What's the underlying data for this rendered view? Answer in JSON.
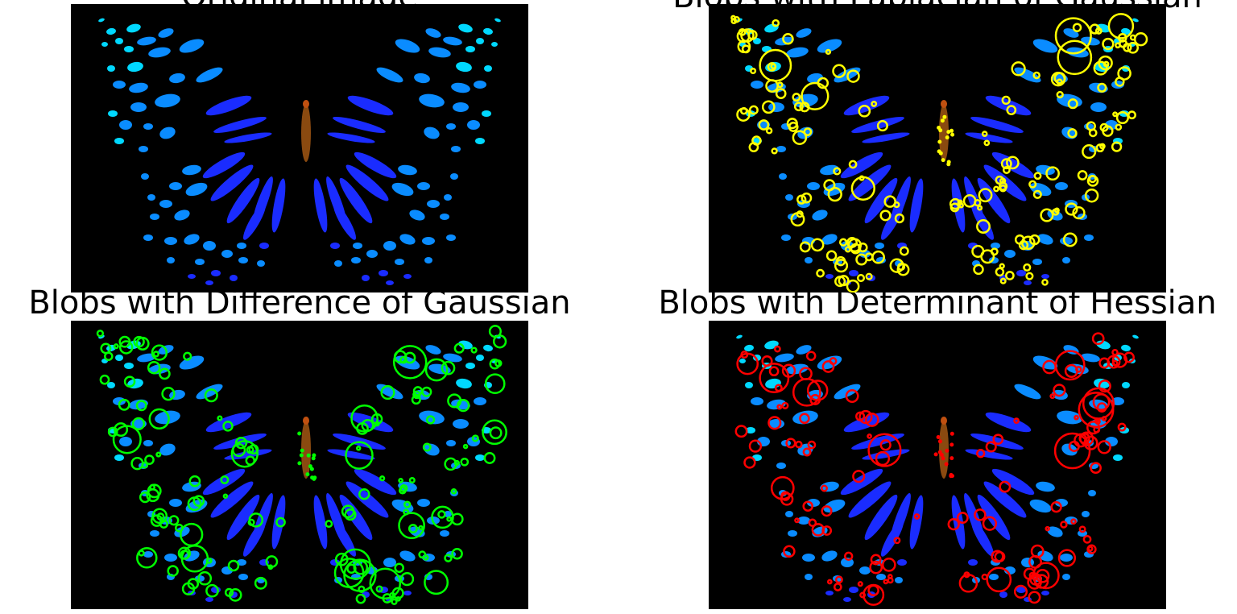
{
  "panels": [
    {
      "id": "original",
      "title": "Original image",
      "overlay_color": ""
    },
    {
      "id": "log",
      "title": "Blobs with Laplacian of Gaussian",
      "overlay_color": "#ffff00"
    },
    {
      "id": "dog",
      "title": "Blobs with Difference of Gaussian",
      "overlay_color": "#00ff00"
    },
    {
      "id": "doh",
      "title": "Blobs with Determinant of Hessian",
      "overlay_color": "#ff0000"
    }
  ],
  "colors": {
    "background": "#000000",
    "wing_light": "#00d8ff",
    "wing_mid": "#0a8cff",
    "wing_dark": "#1a2cff",
    "body": "#8a4a10"
  }
}
